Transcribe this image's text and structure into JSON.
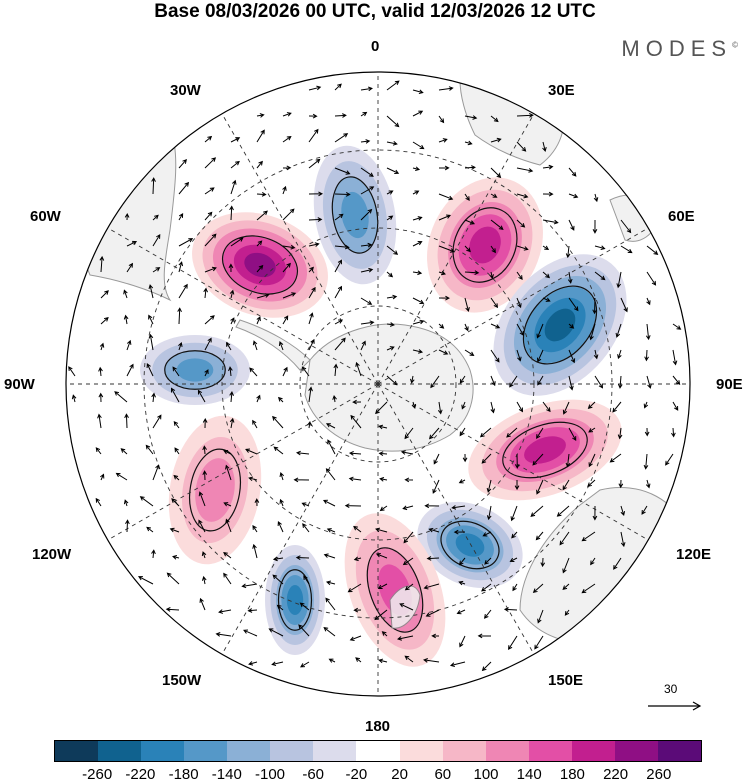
{
  "header": {
    "title": "Base 08/03/2026 00 UTC, valid 12/03/2026 12 UTC",
    "brand": "MODES",
    "brand_mark": "©"
  },
  "map": {
    "projection": "south-polar-stereographic",
    "longitude_labels": [
      "0",
      "30E",
      "60E",
      "90E",
      "120E",
      "150E",
      "180",
      "150W",
      "120W",
      "90W",
      "60W",
      "30W"
    ],
    "reference_vector": "30",
    "colors": {
      "land": "#efefef",
      "coast": "#777777",
      "grid": "#333333"
    },
    "anomalies": [
      {
        "name": "neg-east-of-0",
        "value": -140
      },
      {
        "name": "pos-45e",
        "value": 180
      },
      {
        "name": "neg-70e",
        "value": -220
      },
      {
        "name": "pos-105e",
        "value": 180
      },
      {
        "name": "neg-135e",
        "value": -200
      },
      {
        "name": "pos-170e",
        "value": 140
      },
      {
        "name": "neg-160w",
        "value": -180
      },
      {
        "name": "pos-125w",
        "value": 100
      },
      {
        "name": "neg-95w",
        "value": -140
      },
      {
        "name": "pos-55w",
        "value": 220
      }
    ]
  },
  "colorbar": {
    "ticks": [
      "-260",
      "-220",
      "-180",
      "-140",
      "-100",
      "-60",
      "-20",
      "20",
      "60",
      "100",
      "140",
      "180",
      "220",
      "260"
    ],
    "colors": [
      "#0e3a5a",
      "#10628f",
      "#2a82b8",
      "#5598c8",
      "#8bb0d6",
      "#b8c4e0",
      "#dcdcec",
      "#ffffff",
      "#fbdcdc",
      "#f6b7c7",
      "#ef86b4",
      "#e34fa6",
      "#c21f8f",
      "#8f0f84",
      "#5b0b78"
    ]
  }
}
